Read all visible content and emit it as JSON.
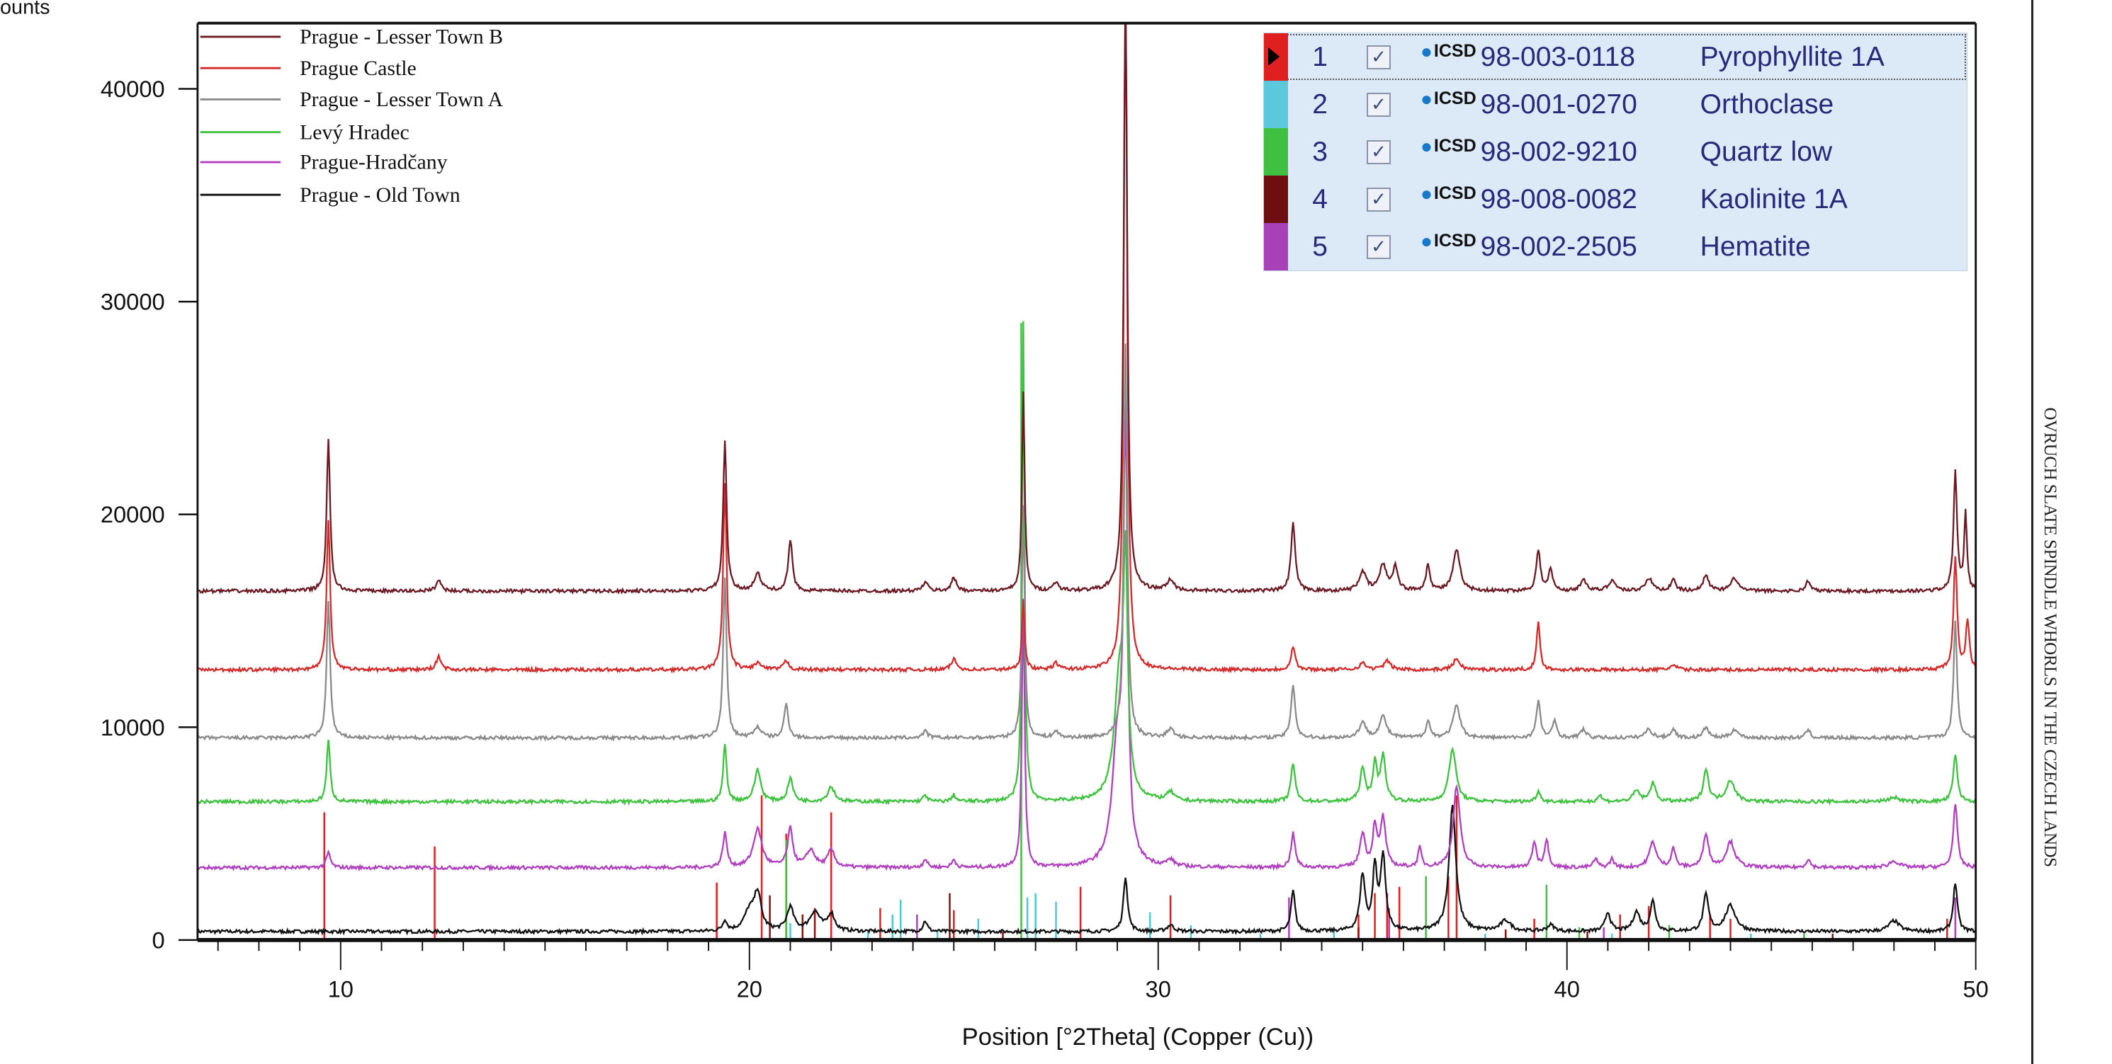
{
  "chart_data": {
    "type": "line",
    "title": "",
    "xlabel": "Position [°2Theta] (Copper (Cu))",
    "ylabel": "ounts",
    "xlim": [
      6.5,
      50
    ],
    "ylim": [
      0,
      43000
    ],
    "x_ticks": [
      "10",
      "20",
      "30",
      "40",
      "50"
    ],
    "y_ticks": [
      "0",
      "10000",
      "20000",
      "30000",
      "40000"
    ],
    "grid": false,
    "legend_placement": "top-left",
    "series": [
      {
        "name": "Prague - Lesser Town B",
        "color": "#6b1a24",
        "baseline": 16400,
        "peaks": [
          [
            9.7,
            23500,
            0.1
          ],
          [
            12.4,
            16900,
            0.15
          ],
          [
            19.4,
            23500,
            0.1
          ],
          [
            20.2,
            17200,
            0.2
          ],
          [
            21.0,
            18800,
            0.12
          ],
          [
            24.3,
            16800,
            0.15
          ],
          [
            25.0,
            17000,
            0.15
          ],
          [
            26.7,
            25700,
            0.08
          ],
          [
            27.5,
            16800,
            0.15
          ],
          [
            29.2,
            45000,
            0.1
          ],
          [
            30.3,
            16900,
            0.2
          ],
          [
            33.3,
            19600,
            0.12
          ],
          [
            35.0,
            17300,
            0.2
          ],
          [
            35.5,
            17600,
            0.2
          ],
          [
            35.8,
            17500,
            0.15
          ],
          [
            36.6,
            17600,
            0.12
          ],
          [
            37.3,
            18300,
            0.2
          ],
          [
            39.3,
            18300,
            0.12
          ],
          [
            39.6,
            17400,
            0.12
          ],
          [
            40.4,
            17000,
            0.15
          ],
          [
            41.1,
            16900,
            0.2
          ],
          [
            42.0,
            17000,
            0.2
          ],
          [
            42.6,
            16900,
            0.15
          ],
          [
            43.4,
            17200,
            0.15
          ],
          [
            44.1,
            17000,
            0.2
          ],
          [
            45.9,
            16900,
            0.12
          ],
          [
            49.5,
            22000,
            0.1
          ],
          [
            49.75,
            20000,
            0.08
          ]
        ]
      },
      {
        "name": "Prague Castle",
        "color": "#d42a2a",
        "baseline": 12700,
        "peaks": [
          [
            9.7,
            19800,
            0.1
          ],
          [
            12.4,
            13300,
            0.15
          ],
          [
            19.4,
            21500,
            0.1
          ],
          [
            20.2,
            13000,
            0.2
          ],
          [
            20.9,
            13100,
            0.15
          ],
          [
            25.0,
            13200,
            0.15
          ],
          [
            26.7,
            16000,
            0.08
          ],
          [
            27.5,
            13000,
            0.15
          ],
          [
            29.2,
            45000,
            0.1
          ],
          [
            33.3,
            13800,
            0.12
          ],
          [
            35.0,
            13000,
            0.2
          ],
          [
            35.6,
            13100,
            0.2
          ],
          [
            37.3,
            13200,
            0.2
          ],
          [
            39.3,
            14900,
            0.1
          ],
          [
            42.6,
            12900,
            0.2
          ],
          [
            49.5,
            18000,
            0.1
          ],
          [
            49.8,
            15000,
            0.1
          ]
        ]
      },
      {
        "name": "Prague - Lesser Town A",
        "color": "#8a8a8a",
        "baseline": 9500,
        "peaks": [
          [
            9.7,
            16000,
            0.1
          ],
          [
            19.4,
            17000,
            0.1
          ],
          [
            20.2,
            10000,
            0.2
          ],
          [
            20.9,
            11100,
            0.12
          ],
          [
            24.3,
            9800,
            0.15
          ],
          [
            26.7,
            20500,
            0.08
          ],
          [
            27.5,
            9800,
            0.15
          ],
          [
            29.2,
            28000,
            0.1
          ],
          [
            30.3,
            9900,
            0.2
          ],
          [
            33.3,
            12000,
            0.12
          ],
          [
            35.0,
            10200,
            0.2
          ],
          [
            35.5,
            10500,
            0.2
          ],
          [
            36.6,
            10300,
            0.12
          ],
          [
            37.3,
            11000,
            0.2
          ],
          [
            39.3,
            11200,
            0.12
          ],
          [
            39.7,
            10300,
            0.12
          ],
          [
            40.4,
            9900,
            0.15
          ],
          [
            42.0,
            9900,
            0.2
          ],
          [
            42.6,
            9900,
            0.15
          ],
          [
            43.4,
            10000,
            0.15
          ],
          [
            44.1,
            9900,
            0.2
          ],
          [
            45.9,
            9900,
            0.12
          ],
          [
            49.5,
            15000,
            0.1
          ]
        ]
      },
      {
        "name": "Levý Hradec",
        "color": "#3cc23c",
        "baseline": 6500,
        "peaks": [
          [
            9.7,
            9400,
            0.1
          ],
          [
            19.4,
            9200,
            0.1
          ],
          [
            20.2,
            8000,
            0.18
          ],
          [
            21.0,
            7600,
            0.15
          ],
          [
            22.0,
            7200,
            0.2
          ],
          [
            24.3,
            6800,
            0.12
          ],
          [
            25.0,
            6800,
            0.12
          ],
          [
            26.7,
            29000,
            0.07
          ],
          [
            29.2,
            16500,
            0.12
          ],
          [
            29.05,
            12000,
            0.3
          ],
          [
            30.3,
            6900,
            0.2
          ],
          [
            33.3,
            8300,
            0.12
          ],
          [
            35.0,
            8000,
            0.15
          ],
          [
            35.3,
            8200,
            0.12
          ],
          [
            35.5,
            8600,
            0.15
          ],
          [
            37.2,
            9000,
            0.2
          ],
          [
            39.3,
            7000,
            0.12
          ],
          [
            40.8,
            6800,
            0.12
          ],
          [
            41.7,
            7000,
            0.2
          ],
          [
            42.1,
            7400,
            0.15
          ],
          [
            43.4,
            8000,
            0.15
          ],
          [
            44.0,
            7500,
            0.25
          ],
          [
            48.0,
            6700,
            0.3
          ],
          [
            49.5,
            8700,
            0.12
          ]
        ]
      },
      {
        "name": "Prague-Hradčany",
        "color": "#b040c0",
        "baseline": 3400,
        "peaks": [
          [
            9.7,
            4100,
            0.12
          ],
          [
            19.4,
            5000,
            0.12
          ],
          [
            20.2,
            5200,
            0.25
          ],
          [
            21.0,
            5200,
            0.15
          ],
          [
            21.5,
            4200,
            0.25
          ],
          [
            22.0,
            4200,
            0.2
          ],
          [
            24.3,
            3800,
            0.12
          ],
          [
            25.0,
            3750,
            0.12
          ],
          [
            26.7,
            16000,
            0.08
          ],
          [
            29.2,
            23000,
            0.12
          ],
          [
            29.0,
            9000,
            0.3
          ],
          [
            30.3,
            3700,
            0.2
          ],
          [
            33.3,
            5000,
            0.12
          ],
          [
            35.0,
            5000,
            0.15
          ],
          [
            35.3,
            5300,
            0.12
          ],
          [
            35.5,
            5700,
            0.15
          ],
          [
            36.4,
            4300,
            0.1
          ],
          [
            37.3,
            7200,
            0.2
          ],
          [
            39.2,
            4600,
            0.12
          ],
          [
            39.5,
            4700,
            0.12
          ],
          [
            40.7,
            3800,
            0.12
          ],
          [
            41.1,
            3800,
            0.12
          ],
          [
            42.1,
            4600,
            0.2
          ],
          [
            42.6,
            4300,
            0.12
          ],
          [
            43.4,
            5000,
            0.15
          ],
          [
            44.0,
            4600,
            0.25
          ],
          [
            45.9,
            3800,
            0.12
          ],
          [
            48.0,
            3700,
            0.3
          ],
          [
            49.5,
            6400,
            0.12
          ]
        ]
      },
      {
        "name": "Prague - Old Town",
        "color": "#111111",
        "baseline": 400,
        "peaks": [
          [
            19.4,
            900,
            0.12
          ],
          [
            20.2,
            2100,
            0.2
          ],
          [
            20.0,
            1300,
            0.3
          ],
          [
            21.0,
            1500,
            0.2
          ],
          [
            21.6,
            1300,
            0.3
          ],
          [
            22.0,
            1200,
            0.2
          ],
          [
            24.3,
            900,
            0.12
          ],
          [
            29.2,
            3000,
            0.12
          ],
          [
            30.3,
            700,
            0.2
          ],
          [
            33.3,
            2300,
            0.12
          ],
          [
            35.0,
            3000,
            0.15
          ],
          [
            35.3,
            3300,
            0.12
          ],
          [
            35.5,
            3900,
            0.15
          ],
          [
            37.2,
            6300,
            0.2
          ],
          [
            38.5,
            900,
            0.3
          ],
          [
            39.6,
            700,
            0.2
          ],
          [
            41.0,
            1300,
            0.15
          ],
          [
            41.7,
            1300,
            0.2
          ],
          [
            42.1,
            1800,
            0.15
          ],
          [
            43.4,
            2100,
            0.15
          ],
          [
            44.0,
            1600,
            0.3
          ],
          [
            48.0,
            900,
            0.3
          ],
          [
            49.5,
            2700,
            0.12
          ]
        ]
      }
    ],
    "reference_patterns": [
      {
        "id": 1,
        "code": "98-003-0118",
        "phase": "Pyrophyllite 1A",
        "color": "#e02020",
        "sticks": [
          [
            9.6,
            6000
          ],
          [
            12.3,
            4400
          ],
          [
            19.2,
            2700
          ],
          [
            20.3,
            6800
          ],
          [
            20.9,
            5000
          ],
          [
            22.0,
            6000
          ],
          [
            23.2,
            1500
          ],
          [
            25.0,
            1400
          ],
          [
            28.1,
            2500
          ],
          [
            30.3,
            2100
          ],
          [
            34.9,
            1200
          ],
          [
            35.3,
            2200
          ],
          [
            35.6,
            2200
          ],
          [
            35.9,
            2500
          ],
          [
            37.1,
            3000
          ],
          [
            37.3,
            6800
          ],
          [
            39.2,
            1000
          ],
          [
            41.3,
            1200
          ],
          [
            42.0,
            1600
          ],
          [
            43.5,
            1200
          ],
          [
            44.0,
            1000
          ],
          [
            49.3,
            1000
          ]
        ]
      },
      {
        "id": 2,
        "code": "98-001-0270",
        "phase": "Orthoclase",
        "color": "#50c8d8",
        "sticks": [
          [
            21.0,
            800
          ],
          [
            22.9,
            400
          ],
          [
            23.5,
            1200
          ],
          [
            23.7,
            1900
          ],
          [
            24.6,
            500
          ],
          [
            25.6,
            1000
          ],
          [
            26.8,
            2000
          ],
          [
            27.0,
            2200
          ],
          [
            27.5,
            1800
          ],
          [
            29.8,
            1300
          ],
          [
            30.8,
            700
          ],
          [
            32.5,
            300
          ],
          [
            34.3,
            500
          ],
          [
            38.0,
            300
          ],
          [
            41.1,
            300
          ],
          [
            44.5,
            300
          ]
        ]
      },
      {
        "id": 3,
        "code": "98-002-9210",
        "phase": "Quartz low",
        "color": "#40c040",
        "sticks": [
          [
            20.9,
            4700
          ],
          [
            26.65,
            29000
          ],
          [
            36.55,
            3000
          ],
          [
            39.5,
            2600
          ],
          [
            40.3,
            600
          ],
          [
            42.5,
            700
          ],
          [
            45.8,
            300
          ]
        ]
      },
      {
        "id": 4,
        "code": "98-008-0082",
        "phase": "Kaolinite 1A",
        "color": "#8b1010",
        "sticks": [
          [
            20.5,
            2100
          ],
          [
            21.3,
            1200
          ],
          [
            21.6,
            1500
          ],
          [
            24.9,
            2200
          ],
          [
            26.2,
            400
          ],
          [
            34.9,
            600
          ],
          [
            38.5,
            500
          ],
          [
            40.5,
            400
          ],
          [
            46.5,
            300
          ]
        ]
      },
      {
        "id": 5,
        "code": "98-002-2505",
        "phase": "Hematite",
        "color": "#b040c0",
        "sticks": [
          [
            24.1,
            1200
          ],
          [
            33.2,
            2000
          ],
          [
            35.65,
            1500
          ],
          [
            40.9,
            600
          ],
          [
            49.5,
            2000
          ]
        ]
      }
    ]
  },
  "phase_table": {
    "selected_row": 1,
    "badge": "ICSD",
    "rows": [
      {
        "num": "1",
        "checked": true,
        "code": "98-003-0118",
        "name": "Pyrophyllite 1A",
        "color": "#e02020"
      },
      {
        "num": "2",
        "checked": true,
        "code": "98-001-0270",
        "name": "Orthoclase",
        "color": "#5cc8dc"
      },
      {
        "num": "3",
        "checked": true,
        "code": "98-002-9210",
        "name": "Quartz low",
        "color": "#40c040"
      },
      {
        "num": "4",
        "checked": true,
        "code": "98-008-0082",
        "name": "Kaolinite 1A",
        "color": "#6e0e10"
      },
      {
        "num": "5",
        "checked": true,
        "code": "98-002-2505",
        "name": "Hematite",
        "color": "#a840b8"
      }
    ]
  },
  "side_title": "OVRUCH SLATE SPINDLE WHORLS IN THE CZECH LANDS"
}
